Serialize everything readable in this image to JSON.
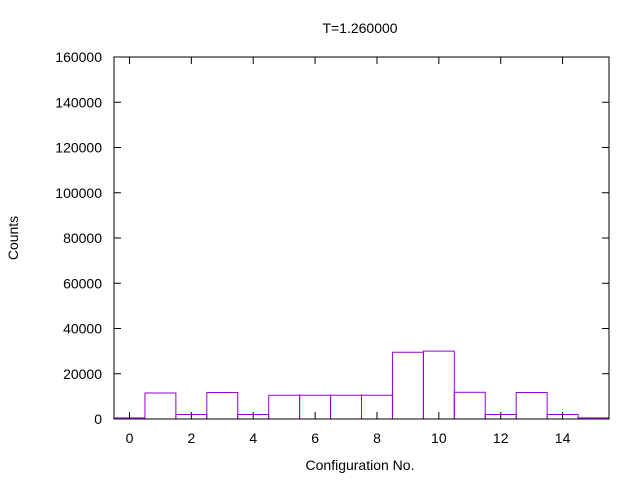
{
  "chart_data": {
    "type": "bar",
    "title": "T=1.260000",
    "xlabel": "Configuration No.",
    "ylabel": "Counts",
    "x": [
      0,
      1,
      2,
      3,
      4,
      5,
      6,
      7,
      8,
      9,
      10,
      11,
      12,
      13,
      14,
      15
    ],
    "values": [
      500,
      11500,
      2000,
      11700,
      2000,
      10500,
      10500,
      10500,
      10500,
      29500,
      30000,
      11800,
      2000,
      11700,
      2000,
      500
    ],
    "xlim": [
      -0.5,
      15.5
    ],
    "ylim": [
      0,
      160000
    ],
    "xticks": [
      0,
      2,
      4,
      6,
      8,
      10,
      12,
      14
    ],
    "yticks": [
      0,
      20000,
      40000,
      60000,
      80000,
      100000,
      120000,
      140000,
      160000
    ],
    "bar_color": "#9400d3",
    "grid": false,
    "legend": "none"
  }
}
